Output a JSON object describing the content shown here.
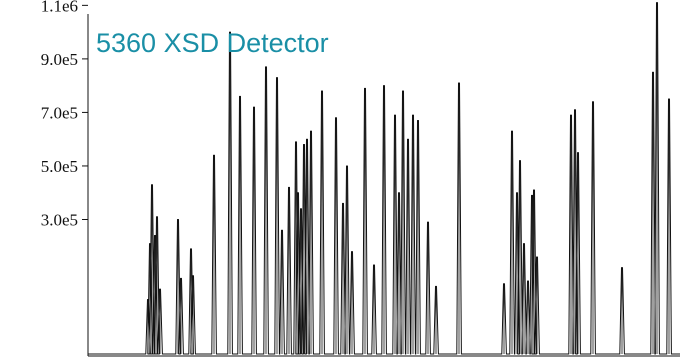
{
  "chart_data": {
    "type": "line",
    "title": "5360 XSD Detector",
    "xlabel": "",
    "ylabel": "",
    "ylim": [
      -210000,
      1120000
    ],
    "y_ticks": [
      {
        "value": 1100000,
        "label": "1.1e6"
      },
      {
        "value": 900000,
        "label": "9.0e5"
      },
      {
        "value": 700000,
        "label": "7.0e5"
      },
      {
        "value": 500000,
        "label": "5.0e5"
      },
      {
        "value": 300000,
        "label": "3.0e5"
      }
    ],
    "grid": false,
    "legend": "none",
    "colors": {
      "title": "#1a8fa6",
      "trace": "#111111",
      "axis": "#111111"
    },
    "series": [
      {
        "x": [
          148,
          150,
          152,
          155,
          157,
          160,
          178,
          181,
          191,
          193,
          214,
          230,
          240,
          254,
          266,
          277,
          282,
          289,
          296,
          298,
          301,
          304,
          307,
          311,
          322,
          336,
          343,
          347,
          352,
          365,
          374,
          384,
          395,
          399,
          403,
          408,
          413,
          418,
          428,
          436,
          459,
          504,
          512,
          517,
          520,
          524,
          528,
          532,
          534,
          537,
          571,
          575,
          578,
          593,
          622,
          653,
          657,
          669
        ],
        "y": [
          1000,
          210000,
          430000,
          240000,
          310000,
          40000,
          300000,
          80000,
          190000,
          90000,
          540000,
          1000000,
          760000,
          720000,
          870000,
          830000,
          260000,
          420000,
          590000,
          400000,
          340000,
          580000,
          600000,
          630000,
          780000,
          680000,
          360000,
          500000,
          180000,
          790000,
          130000,
          800000,
          690000,
          400000,
          780000,
          600000,
          690000,
          670000,
          290000,
          50000,
          810000,
          60000,
          630000,
          400000,
          520000,
          210000,
          70000,
          390000,
          410000,
          160000,
          690000,
          710000,
          550000,
          740000,
          120000,
          850000,
          1110000,
          750000
        ]
      }
    ]
  }
}
